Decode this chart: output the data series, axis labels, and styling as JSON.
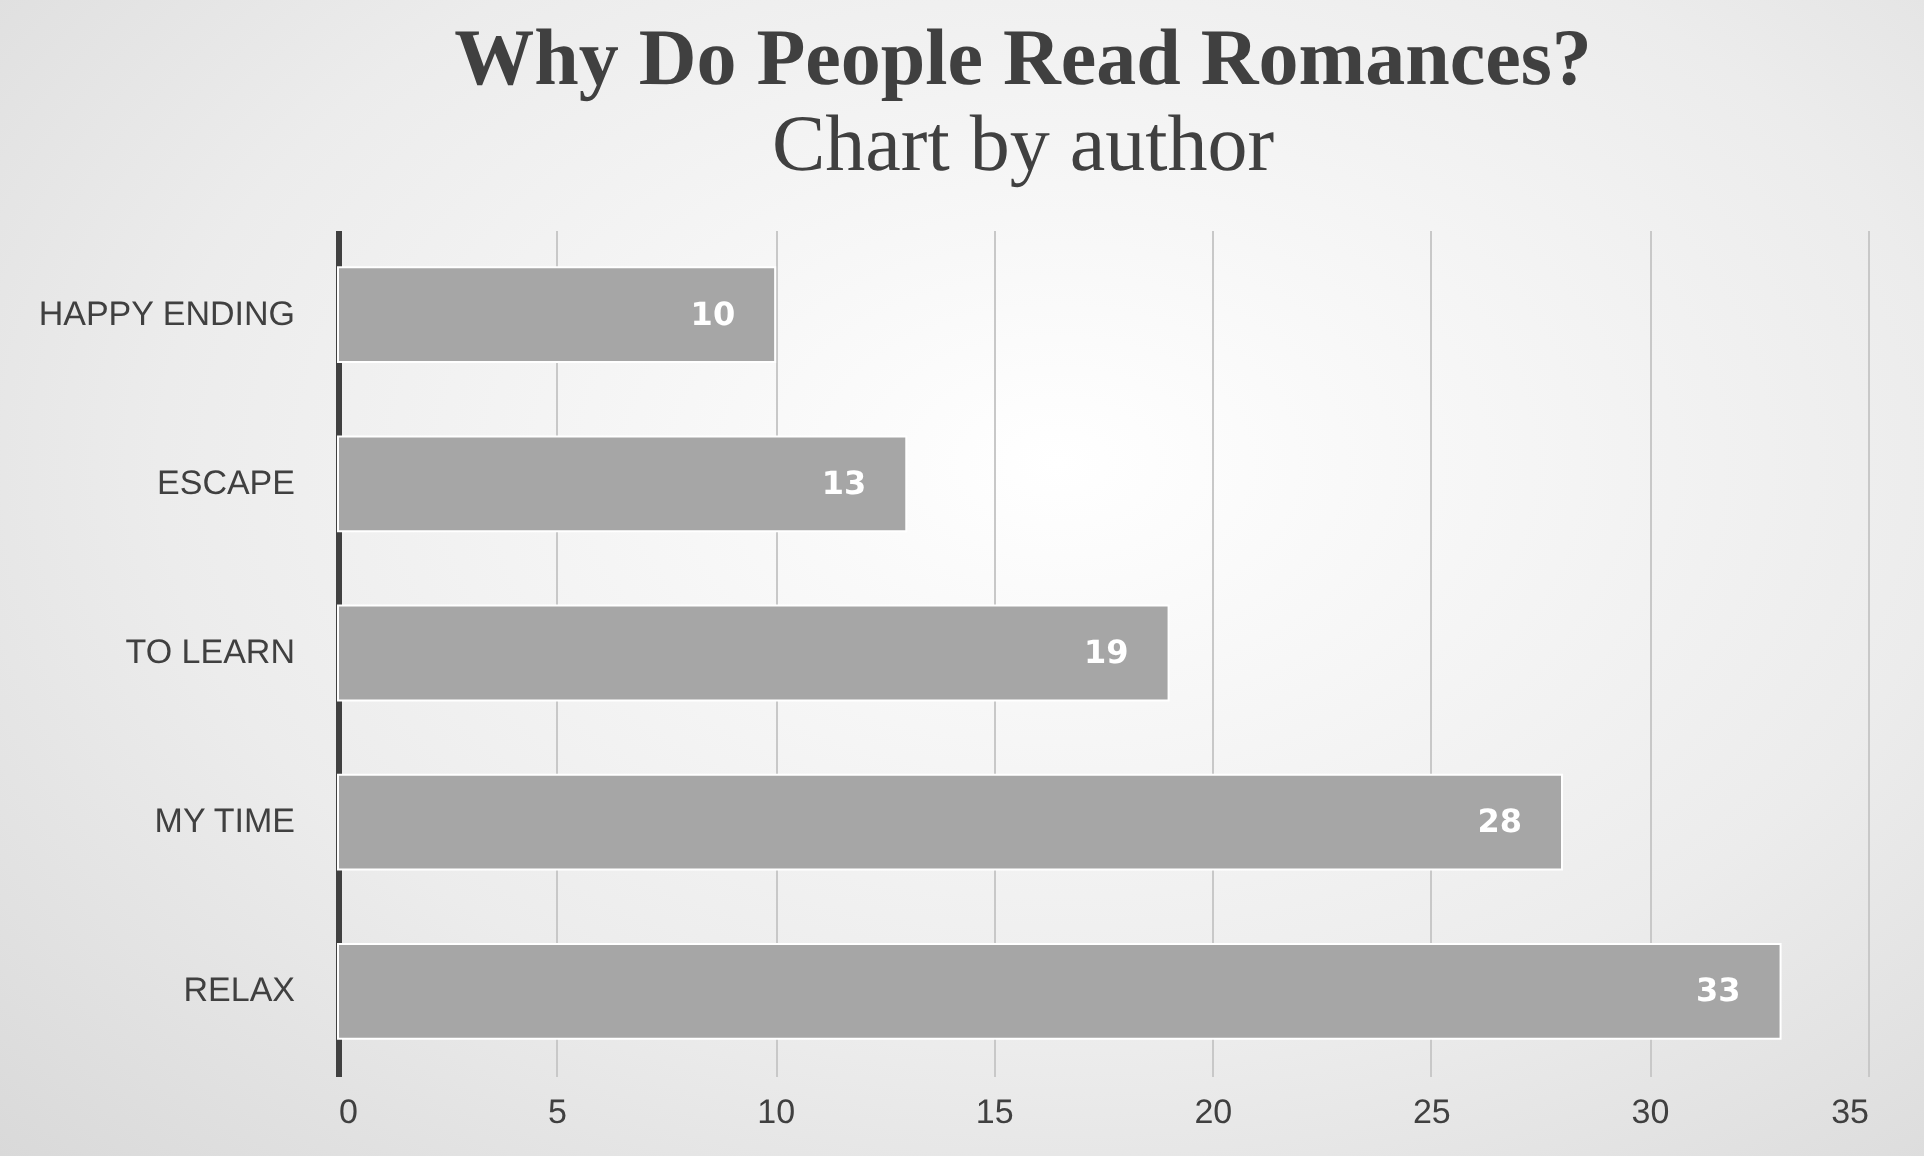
{
  "chart_data": {
    "type": "bar",
    "orientation": "horizontal",
    "title": "Why Do People Read Romances?",
    "subtitle": "Chart by author",
    "categories": [
      "HAPPY ENDING",
      "ESCAPE",
      "TO LEARN",
      "MY TIME",
      "RELAX"
    ],
    "values": [
      10,
      13,
      19,
      28,
      33
    ],
    "color": "#a6a6a6",
    "xlim": [
      0,
      35
    ],
    "xticks": [
      0,
      5,
      10,
      15,
      20,
      25,
      30,
      35
    ],
    "grid": "x",
    "data_labels": true
  }
}
